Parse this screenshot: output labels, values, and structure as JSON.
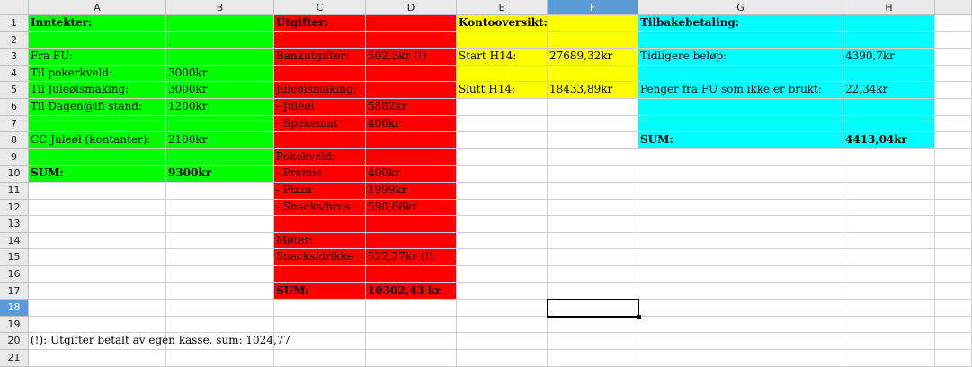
{
  "columns": [
    "A",
    "B",
    "C",
    "D",
    "E",
    "F",
    "G",
    "H"
  ],
  "selected_column": "F",
  "rows": [
    "1",
    "2",
    "3",
    "4",
    "5",
    "6",
    "7",
    "8",
    "9",
    "10",
    "11",
    "12",
    "13",
    "14",
    "15",
    "16",
    "17",
    "18",
    "19",
    "20",
    "21"
  ],
  "selected_row": "18",
  "colors": {
    "green": "#00ff00",
    "red": "#ff0000",
    "yellow": "#ffff00",
    "cyan": "#00ffff"
  },
  "cells": {
    "A1": "Inntekter:",
    "A3": "Fra FU:",
    "A4": "Til pokerkveld:",
    "A5": "Til Juleølsmaking:",
    "A6": "Til Dagen@ifi stand:",
    "A8": "CC Juleøl (kontanter):",
    "A10": "SUM:",
    "B4": "3000kr",
    "B5": "3000kr",
    "B6": "1200kr",
    "B8": "2100kr",
    "B10": "9300kr",
    "C1": "Utgifter:",
    "C3": "Bankutgifter:",
    "C5": "Juleølsmaking:",
    "C6": "- Juleøl",
    "C7": "- Spekemat",
    "C9": "Pokekveld:",
    "C10": "- Premie",
    "C11": "- Pizza",
    "C12": "- Snacks/brus",
    "C14": "Møter:",
    "C15": "Snacks/drikke",
    "C17": "SUM:",
    "D3": "502,5kr   (!)",
    "D6": "5882kr",
    "D7": "406kr",
    "D10": "400kr",
    "D11": "1999kr",
    "D12": "590,66kr",
    "D15": "522,27kr   (!)",
    "D17": "10302,43 kr",
    "E1": "Kontooversikt:",
    "E3": "Start H14:",
    "E5": "Slutt H14:",
    "F3": "27689,32kr",
    "F5": "18433,89kr",
    "G1": "Tilbakebetaling:",
    "G3": "Tidligere beløp:",
    "G5": "Penger fra FU som ikke er brukt:",
    "G8": "SUM:",
    "H3": "4390,7kr",
    "H5": "22,34kr",
    "H8": "4413,04kr",
    "A20": "(!): Utgifter betalt av egen kasse. sum: 1024,77"
  }
}
